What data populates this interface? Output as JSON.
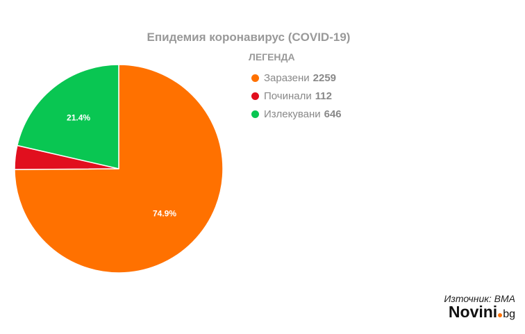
{
  "chart_data": {
    "type": "pie",
    "title": "Епидемия коронавирус (COVID-19)",
    "legend_title": "ЛЕГЕНДА",
    "legend_position": "top-right",
    "series": [
      {
        "name": "Заразени",
        "value": 2259,
        "value_label": "2259",
        "pct_label": "74.9%",
        "color": "#ff7100"
      },
      {
        "name": "Починали",
        "value": 112,
        "value_label": "112",
        "pct_label": "",
        "color": "#e10f1e"
      },
      {
        "name": "Излекувани",
        "value": 646,
        "value_label": "646",
        "pct_label": "21.4%",
        "color": "#09c652"
      }
    ]
  },
  "footer": {
    "source": "Източник: ВМА",
    "brand_main": "Novini",
    "brand_tld": "bg",
    "brand_dot_color": "#ff7100"
  }
}
